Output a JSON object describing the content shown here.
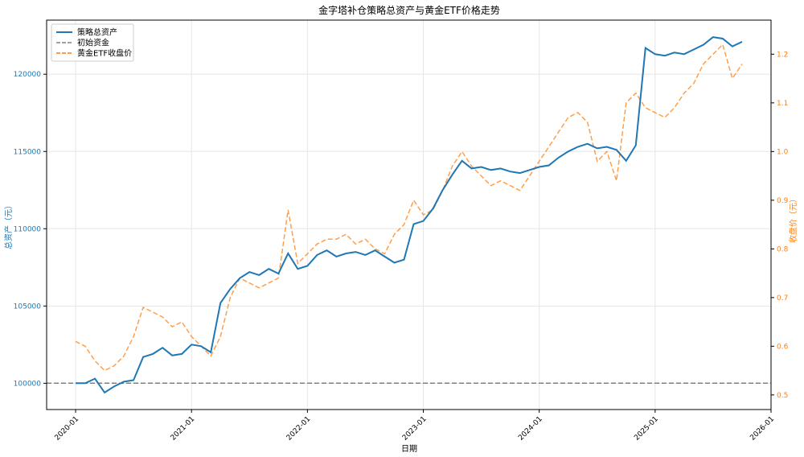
{
  "chart_data": {
    "type": "line",
    "title": "金字塔补仓策略总资产与黄金ETF价格走势",
    "xlabel": "日期",
    "ylabel_left": "总资产（元）",
    "ylabel_right": "收盘价（元）",
    "x_ticks": [
      "2020-01",
      "2021-01",
      "2022-01",
      "2023-01",
      "2024-01",
      "2025-01",
      "2026-01"
    ],
    "x_range": [
      "2019-10",
      "2026-01"
    ],
    "y_left_ticks": [
      100000,
      105000,
      110000,
      115000,
      120000
    ],
    "y_left_range": [
      98300,
      123500
    ],
    "y_right_ticks": [
      0.5,
      0.6,
      0.7,
      0.8,
      0.9,
      1.0,
      1.1,
      1.2
    ],
    "y_right_range": [
      0.47,
      1.27
    ],
    "grid": true,
    "legend_position": "top-left",
    "colors": {
      "total_assets": "#1f77b4",
      "initial_capital": "#808080",
      "gold_etf": "#ff7f0e"
    },
    "series": [
      {
        "name": "策略总资产",
        "axis": "left",
        "style": "solid",
        "x": [
          "2020-01",
          "2020-02",
          "2020-03",
          "2020-04",
          "2020-05",
          "2020-06",
          "2020-07",
          "2020-08",
          "2020-09",
          "2020-10",
          "2020-11",
          "2020-12",
          "2021-01",
          "2021-02",
          "2021-03",
          "2021-04",
          "2021-05",
          "2021-06",
          "2021-07",
          "2021-08",
          "2021-09",
          "2021-10",
          "2021-11",
          "2021-12",
          "2022-01",
          "2022-02",
          "2022-03",
          "2022-04",
          "2022-05",
          "2022-06",
          "2022-07",
          "2022-08",
          "2022-09",
          "2022-10",
          "2022-11",
          "2022-12",
          "2023-01",
          "2023-02",
          "2023-03",
          "2023-04",
          "2023-05",
          "2023-06",
          "2023-07",
          "2023-08",
          "2023-09",
          "2023-10",
          "2023-11",
          "2023-12",
          "2024-01",
          "2024-02",
          "2024-03",
          "2024-04",
          "2024-05",
          "2024-06",
          "2024-07",
          "2024-08",
          "2024-09",
          "2024-10",
          "2024-11",
          "2024-12",
          "2025-01",
          "2025-02",
          "2025-03",
          "2025-04",
          "2025-05",
          "2025-06",
          "2025-07",
          "2025-08",
          "2025-09",
          "2025-10"
        ],
        "y": [
          100000,
          100000,
          100300,
          99400,
          99800,
          100100,
          100200,
          101700,
          101900,
          102300,
          101800,
          101900,
          102500,
          102400,
          102000,
          105200,
          106100,
          106800,
          107200,
          107000,
          107400,
          107100,
          108400,
          107400,
          107600,
          108300,
          108600,
          108200,
          108400,
          108500,
          108300,
          108600,
          108200,
          107800,
          108000,
          110300,
          110500,
          111300,
          112500,
          113500,
          114400,
          113900,
          114000,
          113800,
          113900,
          113700,
          113600,
          113800,
          114000,
          114100,
          114600,
          115000,
          115300,
          115500,
          115200,
          115300,
          115100,
          114400,
          115400,
          121700,
          121300,
          121200,
          121400,
          121300,
          121600,
          121900,
          122400,
          122300,
          121800,
          122100
        ]
      },
      {
        "name": "初始资金",
        "axis": "left",
        "style": "dashed",
        "x": [
          "2019-10",
          "2026-01"
        ],
        "y": [
          100000,
          100000
        ]
      },
      {
        "name": "黄金ETF收盘价",
        "axis": "right",
        "style": "dashed",
        "x": [
          "2020-01",
          "2020-02",
          "2020-03",
          "2020-04",
          "2020-05",
          "2020-06",
          "2020-07",
          "2020-08",
          "2020-09",
          "2020-10",
          "2020-11",
          "2020-12",
          "2021-01",
          "2021-02",
          "2021-03",
          "2021-04",
          "2021-05",
          "2021-06",
          "2021-07",
          "2021-08",
          "2021-09",
          "2021-10",
          "2021-11",
          "2021-12",
          "2022-01",
          "2022-02",
          "2022-03",
          "2022-04",
          "2022-05",
          "2022-06",
          "2022-07",
          "2022-08",
          "2022-09",
          "2022-10",
          "2022-11",
          "2022-12",
          "2023-01",
          "2023-02",
          "2023-03",
          "2023-04",
          "2023-05",
          "2023-06",
          "2023-07",
          "2023-08",
          "2023-09",
          "2023-10",
          "2023-11",
          "2023-12",
          "2024-01",
          "2024-02",
          "2024-03",
          "2024-04",
          "2024-05",
          "2024-06",
          "2024-07",
          "2024-08",
          "2024-09",
          "2024-10",
          "2024-11",
          "2024-12",
          "2025-01",
          "2025-02",
          "2025-03",
          "2025-04",
          "2025-05",
          "2025-06",
          "2025-07",
          "2025-08",
          "2025-09",
          "2025-10"
        ],
        "y": [
          0.61,
          0.6,
          0.57,
          0.55,
          0.56,
          0.58,
          0.62,
          0.68,
          0.67,
          0.66,
          0.64,
          0.65,
          0.62,
          0.6,
          0.58,
          0.62,
          0.7,
          0.74,
          0.73,
          0.72,
          0.73,
          0.74,
          0.88,
          0.77,
          0.79,
          0.81,
          0.82,
          0.82,
          0.83,
          0.81,
          0.82,
          0.8,
          0.79,
          0.83,
          0.85,
          0.9,
          0.87,
          0.88,
          0.92,
          0.97,
          1.0,
          0.97,
          0.95,
          0.93,
          0.94,
          0.93,
          0.92,
          0.95,
          0.98,
          1.01,
          1.04,
          1.07,
          1.08,
          1.06,
          0.98,
          1.0,
          0.94,
          1.1,
          1.12,
          1.09,
          1.08,
          1.07,
          1.09,
          1.12,
          1.14,
          1.18,
          1.2,
          1.22,
          1.15,
          1.18
        ]
      }
    ]
  }
}
